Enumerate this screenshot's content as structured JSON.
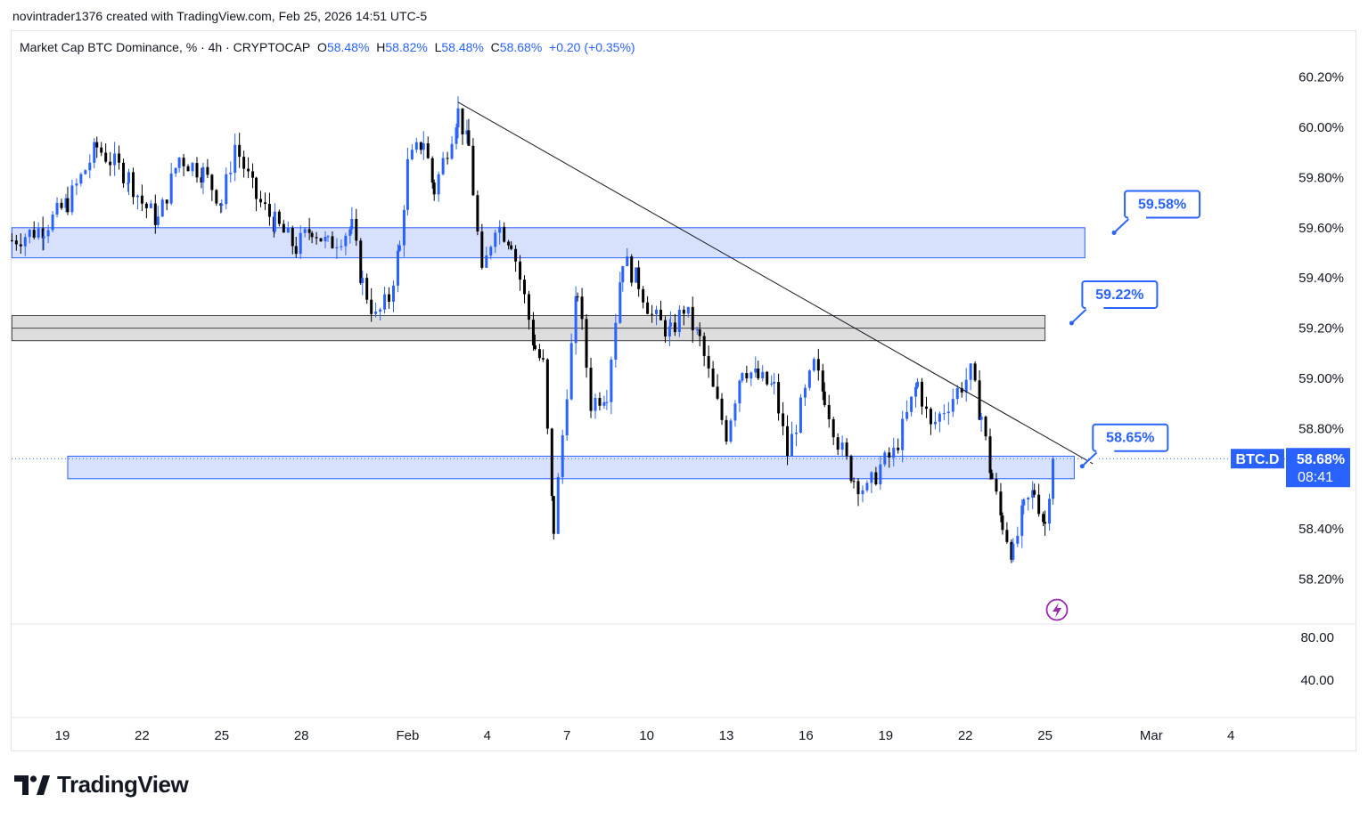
{
  "attribution": "novintrader1376 created with TradingView.com, Feb 25, 2026 14:51 UTC-5",
  "legend": {
    "name": "Market Cap BTC Dominance, % · 4h · CRYPTOCAP",
    "o_label": "O",
    "o_value": "58.48%",
    "h_label": "H",
    "h_value": "58.82%",
    "l_label": "L",
    "l_value": "58.48%",
    "c_label": "C",
    "c_value": "58.68%",
    "change": "+0.20 (+0.35%)"
  },
  "brand": "TradingView",
  "colors": {
    "up": "#2962ff",
    "down": "#000000",
    "zone_blue": "#d1dcfb",
    "zone_blue_border": "#2962ff",
    "zone_gray": "#d9d9d9",
    "axis_text": "#131722"
  },
  "chart_data": {
    "type": "candlestick",
    "symbol_badge": "BTC.D",
    "last_price_label": "58.68%",
    "countdown": "08:41",
    "last_price": 58.68,
    "y_range": [
      58.05,
      60.3
    ],
    "y_ticks": [
      {
        "value": 60.2,
        "label": "60.20%"
      },
      {
        "value": 60.0,
        "label": "60.00%"
      },
      {
        "value": 59.8,
        "label": "59.80%"
      },
      {
        "value": 59.6,
        "label": "59.60%"
      },
      {
        "value": 59.4,
        "label": "59.40%"
      },
      {
        "value": 59.2,
        "label": "59.20%"
      },
      {
        "value": 59.0,
        "label": "59.00%"
      },
      {
        "value": 58.8,
        "label": "58.80%"
      },
      {
        "value": 58.4,
        "label": "58.40%"
      },
      {
        "value": 58.2,
        "label": "58.20%"
      }
    ],
    "x_ticks": [
      {
        "day": 0,
        "label": "19"
      },
      {
        "day": 3,
        "label": "22"
      },
      {
        "day": 6,
        "label": "25"
      },
      {
        "day": 9,
        "label": "28"
      },
      {
        "day": 13,
        "label": "Feb"
      },
      {
        "day": 16,
        "label": "4"
      },
      {
        "day": 19,
        "label": "7"
      },
      {
        "day": 22,
        "label": "10"
      },
      {
        "day": 25,
        "label": "13"
      },
      {
        "day": 28,
        "label": "16"
      },
      {
        "day": 31,
        "label": "19"
      },
      {
        "day": 34,
        "label": "22"
      },
      {
        "day": 37,
        "label": "25"
      },
      {
        "day": 41,
        "label": "Mar"
      },
      {
        "day": 44,
        "label": "4"
      }
    ],
    "sub_pane_ticks": [
      {
        "value": 80,
        "label": "80.00"
      },
      {
        "value": 40,
        "label": "40.00"
      }
    ],
    "zones": [
      {
        "type": "blue",
        "from_day": -1.9,
        "to_day": 38.5,
        "top": 59.6,
        "bottom": 59.48
      },
      {
        "type": "gray",
        "from_day": -1.9,
        "to_day": 37.0,
        "top": 59.25,
        "bottom": 59.15
      },
      {
        "type": "blue",
        "from_day": 0.2,
        "to_day": 38.1,
        "top": 58.69,
        "bottom": 58.6
      }
    ],
    "trendline": {
      "from_day": 14.9,
      "from_value": 60.1,
      "to_day": 38.8,
      "to_value": 58.66
    },
    "callouts": [
      {
        "label": "59.58%",
        "value": 59.58,
        "day": 39.6
      },
      {
        "label": "59.22%",
        "value": 59.22,
        "day": 38.0
      },
      {
        "label": "58.65%",
        "value": 58.65,
        "day": 38.4
      }
    ],
    "keypoints": [
      [
        -1.9,
        59.55
      ],
      [
        -0.7,
        59.6
      ],
      [
        0.2,
        59.7
      ],
      [
        1.3,
        59.92
      ],
      [
        2.5,
        59.8
      ],
      [
        3.0,
        59.7
      ],
      [
        3.6,
        59.63
      ],
      [
        4.4,
        59.88
      ],
      [
        5.3,
        59.82
      ],
      [
        6.0,
        59.7
      ],
      [
        6.5,
        59.93
      ],
      [
        7.3,
        59.72
      ],
      [
        8.0,
        59.62
      ],
      [
        8.8,
        59.52
      ],
      [
        9.4,
        59.6
      ],
      [
        10.0,
        59.53
      ],
      [
        10.9,
        59.6
      ],
      [
        11.3,
        59.38
      ],
      [
        11.8,
        59.24
      ],
      [
        12.3,
        59.32
      ],
      [
        12.7,
        59.52
      ],
      [
        13.0,
        59.85
      ],
      [
        13.6,
        59.95
      ],
      [
        14.0,
        59.75
      ],
      [
        14.5,
        59.92
      ],
      [
        14.9,
        60.06
      ],
      [
        15.3,
        59.92
      ],
      [
        15.8,
        59.4
      ],
      [
        16.3,
        59.62
      ],
      [
        16.9,
        59.55
      ],
      [
        17.4,
        59.32
      ],
      [
        17.8,
        59.12
      ],
      [
        18.1,
        59.05
      ],
      [
        18.5,
        58.4
      ],
      [
        19.0,
        58.96
      ],
      [
        19.4,
        59.35
      ],
      [
        19.9,
        58.9
      ],
      [
        20.5,
        58.95
      ],
      [
        21.1,
        59.48
      ],
      [
        21.7,
        59.38
      ],
      [
        22.2,
        59.25
      ],
      [
        22.9,
        59.18
      ],
      [
        23.4,
        59.28
      ],
      [
        24.0,
        59.15
      ],
      [
        24.5,
        58.95
      ],
      [
        25.0,
        58.78
      ],
      [
        25.6,
        59.05
      ],
      [
        26.2,
        59.0
      ],
      [
        26.8,
        58.96
      ],
      [
        27.3,
        58.7
      ],
      [
        27.8,
        58.88
      ],
      [
        28.3,
        59.05
      ],
      [
        28.7,
        58.93
      ],
      [
        29.2,
        58.75
      ],
      [
        29.8,
        58.6
      ],
      [
        30.3,
        58.55
      ],
      [
        30.8,
        58.65
      ],
      [
        31.3,
        58.7
      ],
      [
        31.8,
        58.85
      ],
      [
        32.2,
        58.98
      ],
      [
        32.7,
        58.8
      ],
      [
        33.2,
        58.88
      ],
      [
        33.7,
        58.95
      ],
      [
        34.2,
        59.02
      ],
      [
        34.6,
        58.85
      ],
      [
        35.0,
        58.6
      ],
      [
        35.4,
        58.42
      ],
      [
        35.8,
        58.3
      ],
      [
        36.2,
        58.48
      ],
      [
        36.6,
        58.55
      ],
      [
        37.0,
        58.42
      ],
      [
        37.3,
        58.68
      ]
    ]
  }
}
